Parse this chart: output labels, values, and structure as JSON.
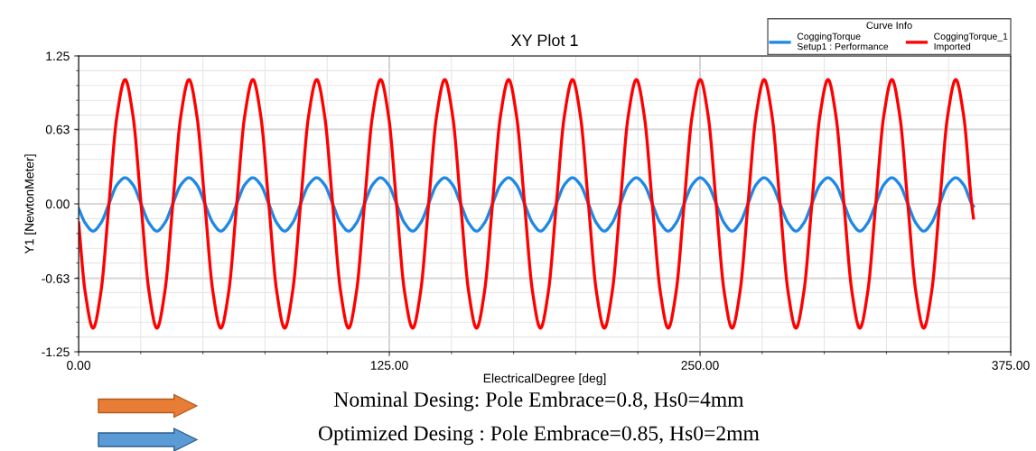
{
  "chart_data": {
    "type": "line",
    "title": "XY Plot 1",
    "xlabel": "ElectricalDegree [deg]",
    "ylabel": "Y1 [NewtonMeter]",
    "legend_title": "Curve Info",
    "x": [
      0,
      2.6,
      5.8,
      9.0,
      12.2,
      15.4,
      18.7,
      21.9,
      25.1,
      28.3,
      31.5,
      34.7,
      37.9,
      41.1,
      44.4,
      47.6,
      50.8,
      54.0,
      57.2,
      60.4,
      63.6,
      66.8,
      70.1,
      73.3,
      76.5,
      79.7,
      82.9,
      86.1,
      89.3,
      92.5,
      95.8,
      99.0,
      102.2,
      105.4,
      108.6,
      111.8,
      115.0,
      118.2,
      121.5,
      124.7,
      127.9,
      131.1,
      134.4,
      137.6,
      140.8,
      144.0,
      147.3,
      150.5,
      153.7,
      156.9,
      160.1,
      163.3,
      166.5,
      169.7,
      173.0,
      176.2,
      179.4,
      182.6,
      185.8,
      189.0,
      192.2,
      195.4,
      198.7,
      201.9,
      205.1,
      208.3,
      211.5,
      214.7,
      217.9,
      221.1,
      224.4,
      227.6,
      230.8,
      234.0,
      237.2,
      240.4,
      243.6,
      246.8,
      250.1,
      253.3,
      256.5,
      259.7,
      262.9,
      266.1,
      269.3,
      272.5,
      275.8,
      279.0,
      282.2,
      285.4,
      288.6,
      291.8,
      295.0,
      298.2,
      301.5,
      304.7,
      307.9,
      311.1,
      314.3,
      317.5,
      320.7,
      323.9,
      327.2,
      330.4,
      333.6,
      336.8,
      340.0,
      343.2,
      346.4,
      349.6,
      352.9,
      356.1,
      359.3,
      360
    ],
    "series": [
      {
        "name": "CoggingTorque\nSetup1 : Performance",
        "color": "#1e88e5",
        "values": [
          -0.04,
          -0.16,
          -0.23,
          -0.16,
          0,
          0.16,
          0.22,
          0.16,
          0,
          -0.16,
          -0.23,
          -0.16,
          0,
          0.16,
          0.22,
          0.16,
          0,
          -0.16,
          -0.23,
          -0.16,
          0,
          0.16,
          0.22,
          0.16,
          0,
          -0.16,
          -0.23,
          -0.16,
          0,
          0.16,
          0.22,
          0.16,
          0,
          -0.16,
          -0.23,
          -0.16,
          0,
          0.16,
          0.22,
          0.16,
          0,
          -0.16,
          -0.23,
          -0.16,
          0,
          0.16,
          0.22,
          0.16,
          0,
          -0.16,
          -0.23,
          -0.16,
          0,
          0.16,
          0.22,
          0.16,
          0,
          -0.16,
          -0.23,
          -0.16,
          0,
          0.16,
          0.22,
          0.16,
          0,
          -0.16,
          -0.23,
          -0.16,
          0,
          0.16,
          0.22,
          0.16,
          0,
          -0.16,
          -0.23,
          -0.16,
          0,
          0.16,
          0.22,
          0.16,
          0,
          -0.16,
          -0.23,
          -0.16,
          0,
          0.16,
          0.22,
          0.16,
          0,
          -0.16,
          -0.23,
          -0.16,
          0,
          0.16,
          0.22,
          0.16,
          0,
          -0.16,
          -0.23,
          -0.16,
          0,
          0.16,
          0.22,
          0.16,
          0,
          -0.16,
          -0.23,
          -0.16,
          0,
          0.16,
          0.22,
          0.16,
          0,
          -0.02
        ]
      },
      {
        "name": "CoggingTorque_1\nImported",
        "color": "#ff0000",
        "values": [
          -0.16,
          -0.74,
          -1.05,
          -0.74,
          0,
          0.74,
          1.05,
          0.74,
          0,
          -0.74,
          -1.05,
          -0.74,
          0,
          0.74,
          1.05,
          0.74,
          0,
          -0.74,
          -1.05,
          -0.74,
          0,
          0.74,
          1.05,
          0.74,
          0,
          -0.74,
          -1.05,
          -0.74,
          0,
          0.74,
          1.05,
          0.74,
          0,
          -0.74,
          -1.05,
          -0.74,
          0,
          0.74,
          1.05,
          0.74,
          0,
          -0.74,
          -1.05,
          -0.74,
          0,
          0.74,
          1.05,
          0.74,
          0,
          -0.74,
          -1.05,
          -0.74,
          0,
          0.74,
          1.05,
          0.74,
          0,
          -0.74,
          -1.05,
          -0.74,
          0,
          0.74,
          1.05,
          0.74,
          0,
          -0.74,
          -1.05,
          -0.74,
          0,
          0.74,
          1.05,
          0.74,
          0,
          -0.74,
          -1.05,
          -0.74,
          0,
          0.74,
          1.05,
          0.74,
          0,
          -0.74,
          -1.05,
          -0.74,
          0,
          0.74,
          1.05,
          0.74,
          0,
          -0.74,
          -1.05,
          -0.74,
          0,
          0.74,
          1.05,
          0.74,
          0,
          -0.74,
          -1.05,
          -0.74,
          0,
          0.74,
          1.05,
          0.74,
          0,
          -0.74,
          -1.05,
          -0.74,
          0,
          0.74,
          1.05,
          0.74,
          0,
          -0.12
        ]
      }
    ],
    "xlim": [
      0,
      375
    ],
    "xticks": [
      {
        "value": 0,
        "label": "0.00"
      },
      {
        "value": 125,
        "label": "125.00"
      },
      {
        "value": 250,
        "label": "250.00"
      },
      {
        "value": 375,
        "label": "375.00"
      }
    ],
    "ylim": [
      -1.25,
      1.25
    ],
    "yticks": [
      {
        "value": -1.25,
        "label": "-1.25"
      },
      {
        "value": -0.63,
        "label": "-0.63"
      },
      {
        "value": 0,
        "label": "0.00"
      },
      {
        "value": 0.63,
        "label": "0.63"
      },
      {
        "value": 1.25,
        "label": "1.25"
      }
    ],
    "grid": true,
    "legend": "top right",
    "marker": "none",
    "line_style": "solid",
    "annotations": [
      "Nominal Desing: Pole Embrace=0.8, Hs0=4mm",
      "Optimized Desing : Pole Embrace=0.85, Hs0=2mm"
    ]
  }
}
